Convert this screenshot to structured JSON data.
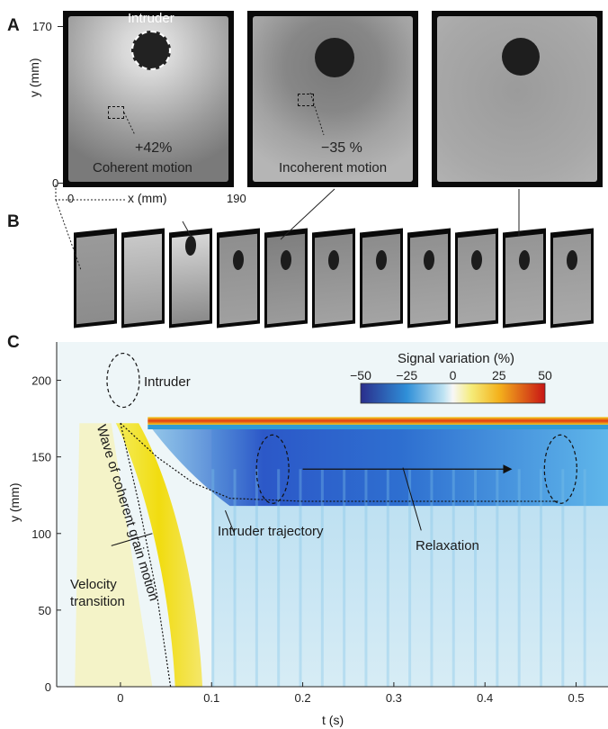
{
  "panelA": {
    "label": "A",
    "ytick_top": "170",
    "ytick_bottom": "0",
    "ylabel": "y (mm)",
    "xtick_left": "0",
    "xlabel": "x (mm)",
    "xtick_right": "190",
    "intruder_label": "Intruder",
    "frame1_value": "+42%",
    "frame1_desc": "Coherent motion",
    "frame2_value": "−35 %",
    "frame2_desc": "Incoherent motion"
  },
  "panelB": {
    "label": "B",
    "slice_count": 11
  },
  "panelC": {
    "label": "C",
    "ylabel": "y (mm)",
    "xlabel": "t (s)",
    "colorbar_title": "Signal variation (%)",
    "colorbar_ticks": [
      "−50",
      "−25",
      "0",
      "25",
      "50"
    ],
    "annotations": {
      "intruder": "Intruder",
      "wave": "Wave of coherent  grain motion",
      "velocity": "Velocity transition",
      "trajectory": "Intruder trajectory",
      "relaxation": "Relaxation"
    }
  },
  "chart_data": {
    "type": "heatmap",
    "title": "",
    "xlabel": "t (s)",
    "ylabel": "y (mm)",
    "xlim": [
      -0.07,
      0.535
    ],
    "ylim": [
      0,
      225
    ],
    "xticks": [
      0,
      0.1,
      0.2,
      0.3,
      0.4,
      0.5
    ],
    "xtick_labels": [
      "0",
      "0.1",
      "0.2",
      "0.3",
      "0.4",
      "0.5"
    ],
    "yticks": [
      0,
      50,
      100,
      150,
      200
    ],
    "ytick_labels": [
      "0",
      "50",
      "100",
      "150",
      "200"
    ],
    "colorbar": {
      "label": "Signal variation (%)",
      "min": -50,
      "max": 50,
      "ticks": [
        -50,
        -25,
        0,
        25,
        50
      ]
    },
    "colors": {
      "neg": "#2233aa",
      "zero": "#f5f8f8",
      "pos": "#d81a1a",
      "wave": "#f2e21a"
    },
    "intruder_trajectory": {
      "t": [
        0.0,
        0.04,
        0.08,
        0.12,
        0.2,
        0.3,
        0.4,
        0.48
      ],
      "y": [
        172,
        150,
        133,
        123,
        121,
        121,
        121,
        121
      ]
    },
    "velocity_transition": {
      "t": [
        0.0,
        0.02,
        0.04,
        0.05,
        0.055
      ],
      "y": [
        172,
        120,
        60,
        20,
        0
      ]
    },
    "top_edge_y": 172
  }
}
